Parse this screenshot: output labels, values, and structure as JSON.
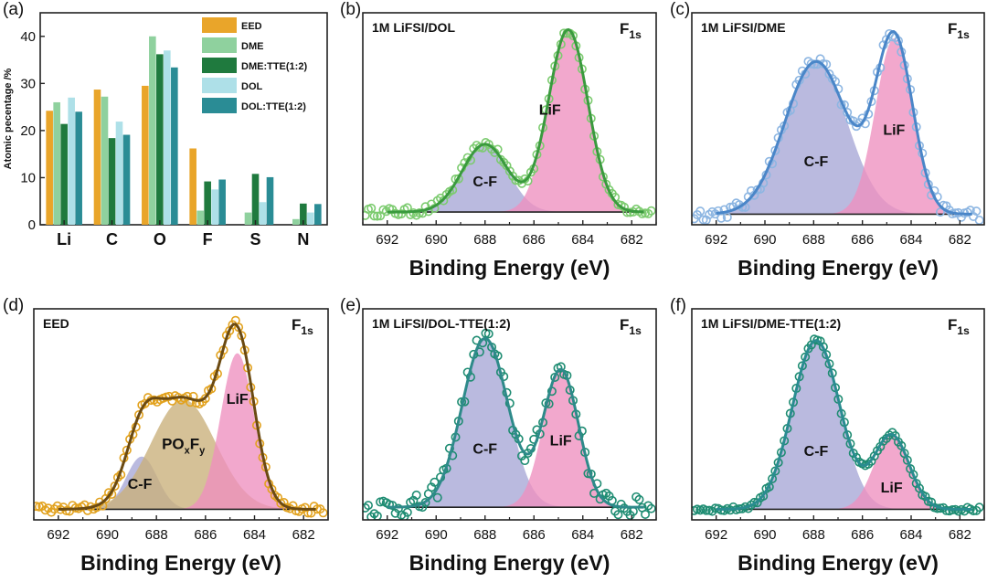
{
  "chart_data": [
    {
      "type": "bar",
      "panel_label": "(a)",
      "ylabel": "Atomic pecentage /%",
      "ylim": [
        0,
        45
      ],
      "yticks": [
        0,
        10,
        20,
        30,
        40
      ],
      "categories": [
        "Li",
        "C",
        "O",
        "F",
        "S",
        "N"
      ],
      "legend_position": "top-right",
      "series": [
        {
          "name": "EED",
          "color": "#E9A52A",
          "values": [
            24.2,
            28.7,
            29.5,
            16.2,
            0,
            0
          ]
        },
        {
          "name": "DME",
          "color": "#8FD19E",
          "values": [
            26.0,
            27.2,
            40.0,
            3.0,
            2.6,
            1.2
          ]
        },
        {
          "name": "DME:TTE(1:2)",
          "color": "#1F7A3E",
          "values": [
            21.4,
            18.4,
            36.2,
            9.2,
            10.8,
            4.5
          ]
        },
        {
          "name": "DOL",
          "color": "#AEE0E8",
          "values": [
            27.0,
            21.9,
            37.0,
            7.5,
            4.8,
            2.6
          ]
        },
        {
          "name": "DOL:TTE(1:2)",
          "color": "#2A8C95",
          "values": [
            24.0,
            19.1,
            33.4,
            9.6,
            10.1,
            4.4
          ]
        }
      ]
    },
    {
      "type": "line",
      "panel_label": "(b)",
      "title": "1M LiFSI/DOL",
      "orbital": "F",
      "orbital_sub": "1s",
      "xlabel": "Binding Energy (eV)",
      "xlim": [
        693,
        681
      ],
      "xticks": [
        692,
        690,
        688,
        686,
        684,
        682
      ],
      "point_color": "#7CCB6F",
      "fit_color": "#3A9A3E",
      "baseline": 0.06,
      "noise": 0.02,
      "peaks": [
        {
          "name": "C-F",
          "center": 688.0,
          "height": 0.32,
          "fwhm": 2.2,
          "fill": "#A7A6D6"
        },
        {
          "name": "LiF",
          "center": 684.6,
          "height": 0.86,
          "fwhm": 1.9,
          "fill": "#EE8FBF"
        }
      ]
    },
    {
      "type": "line",
      "panel_label": "(c)",
      "title": "1M LiFSI/DME",
      "orbital": "F",
      "orbital_sub": "1s",
      "xlabel": "Binding Energy (eV)",
      "xlim": [
        693,
        681
      ],
      "xticks": [
        692,
        690,
        688,
        686,
        684,
        682
      ],
      "point_color": "#8DB6E2",
      "fit_color": "#4A86C8",
      "baseline": 0.05,
      "noise": 0.03,
      "peaks": [
        {
          "name": "C-F",
          "center": 687.9,
          "height": 0.72,
          "fwhm": 3.0,
          "fill": "#A7A6D6"
        },
        {
          "name": "LiF",
          "center": 684.7,
          "height": 0.83,
          "fwhm": 1.8,
          "fill": "#EE8FBF"
        }
      ]
    },
    {
      "type": "line",
      "panel_label": "(d)",
      "title": "EED",
      "orbital": "F",
      "orbital_sub": "1s",
      "xlabel": "Binding Energy (eV)",
      "xlim": [
        693,
        681
      ],
      "xticks": [
        692,
        690,
        688,
        686,
        684,
        682
      ],
      "point_color": "#E2A21E",
      "fit_color": "#6B4A12",
      "baseline": 0.05,
      "noise": 0.02,
      "peaks": [
        {
          "name": "C-F",
          "center": 688.6,
          "height": 0.25,
          "fwhm": 1.5,
          "fill": "#A7A6D6"
        },
        {
          "name": "PO",
          "sub1": "x",
          "mid": "F",
          "sub2": "y",
          "center": 686.9,
          "height": 0.52,
          "fwhm": 3.1,
          "fill": "#C9B07A"
        },
        {
          "name": "LiF",
          "center": 684.7,
          "height": 0.74,
          "fwhm": 1.6,
          "fill": "#EE8FBF"
        }
      ]
    },
    {
      "type": "line",
      "panel_label": "(e)",
      "title": "1M LiFSI/DOL-TTE(1:2)",
      "orbital": "F",
      "orbital_sub": "1s",
      "xlabel": "Binding Energy (eV)",
      "xlim": [
        693,
        681
      ],
      "xticks": [
        692,
        690,
        688,
        686,
        684,
        682
      ],
      "point_color": "#1E8C72",
      "fit_color": "#2E8A8A",
      "baseline": 0.06,
      "noise": 0.05,
      "peaks": [
        {
          "name": "C-F",
          "center": 688.0,
          "height": 0.8,
          "fwhm": 2.2,
          "fill": "#A7A6D6"
        },
        {
          "name": "LiF",
          "center": 684.9,
          "height": 0.65,
          "fwhm": 1.7,
          "fill": "#EE8FBF"
        }
      ]
    },
    {
      "type": "line",
      "panel_label": "(f)",
      "title": "1M LiFSI/DME-TTE(1:2)",
      "orbital": "F",
      "orbital_sub": "1s",
      "xlabel": "Binding Energy (eV)",
      "xlim": [
        693,
        681
      ],
      "xticks": [
        692,
        690,
        688,
        686,
        684,
        682
      ],
      "point_color": "#1E8C72",
      "fit_color": "#2A8C90",
      "baseline": 0.05,
      "noise": 0.01,
      "peaks": [
        {
          "name": "C-F",
          "center": 687.9,
          "height": 0.8,
          "fwhm": 2.3,
          "fill": "#A7A6D6"
        },
        {
          "name": "LiF",
          "center": 684.8,
          "height": 0.35,
          "fwhm": 1.7,
          "fill": "#EE8FBF"
        }
      ]
    }
  ]
}
